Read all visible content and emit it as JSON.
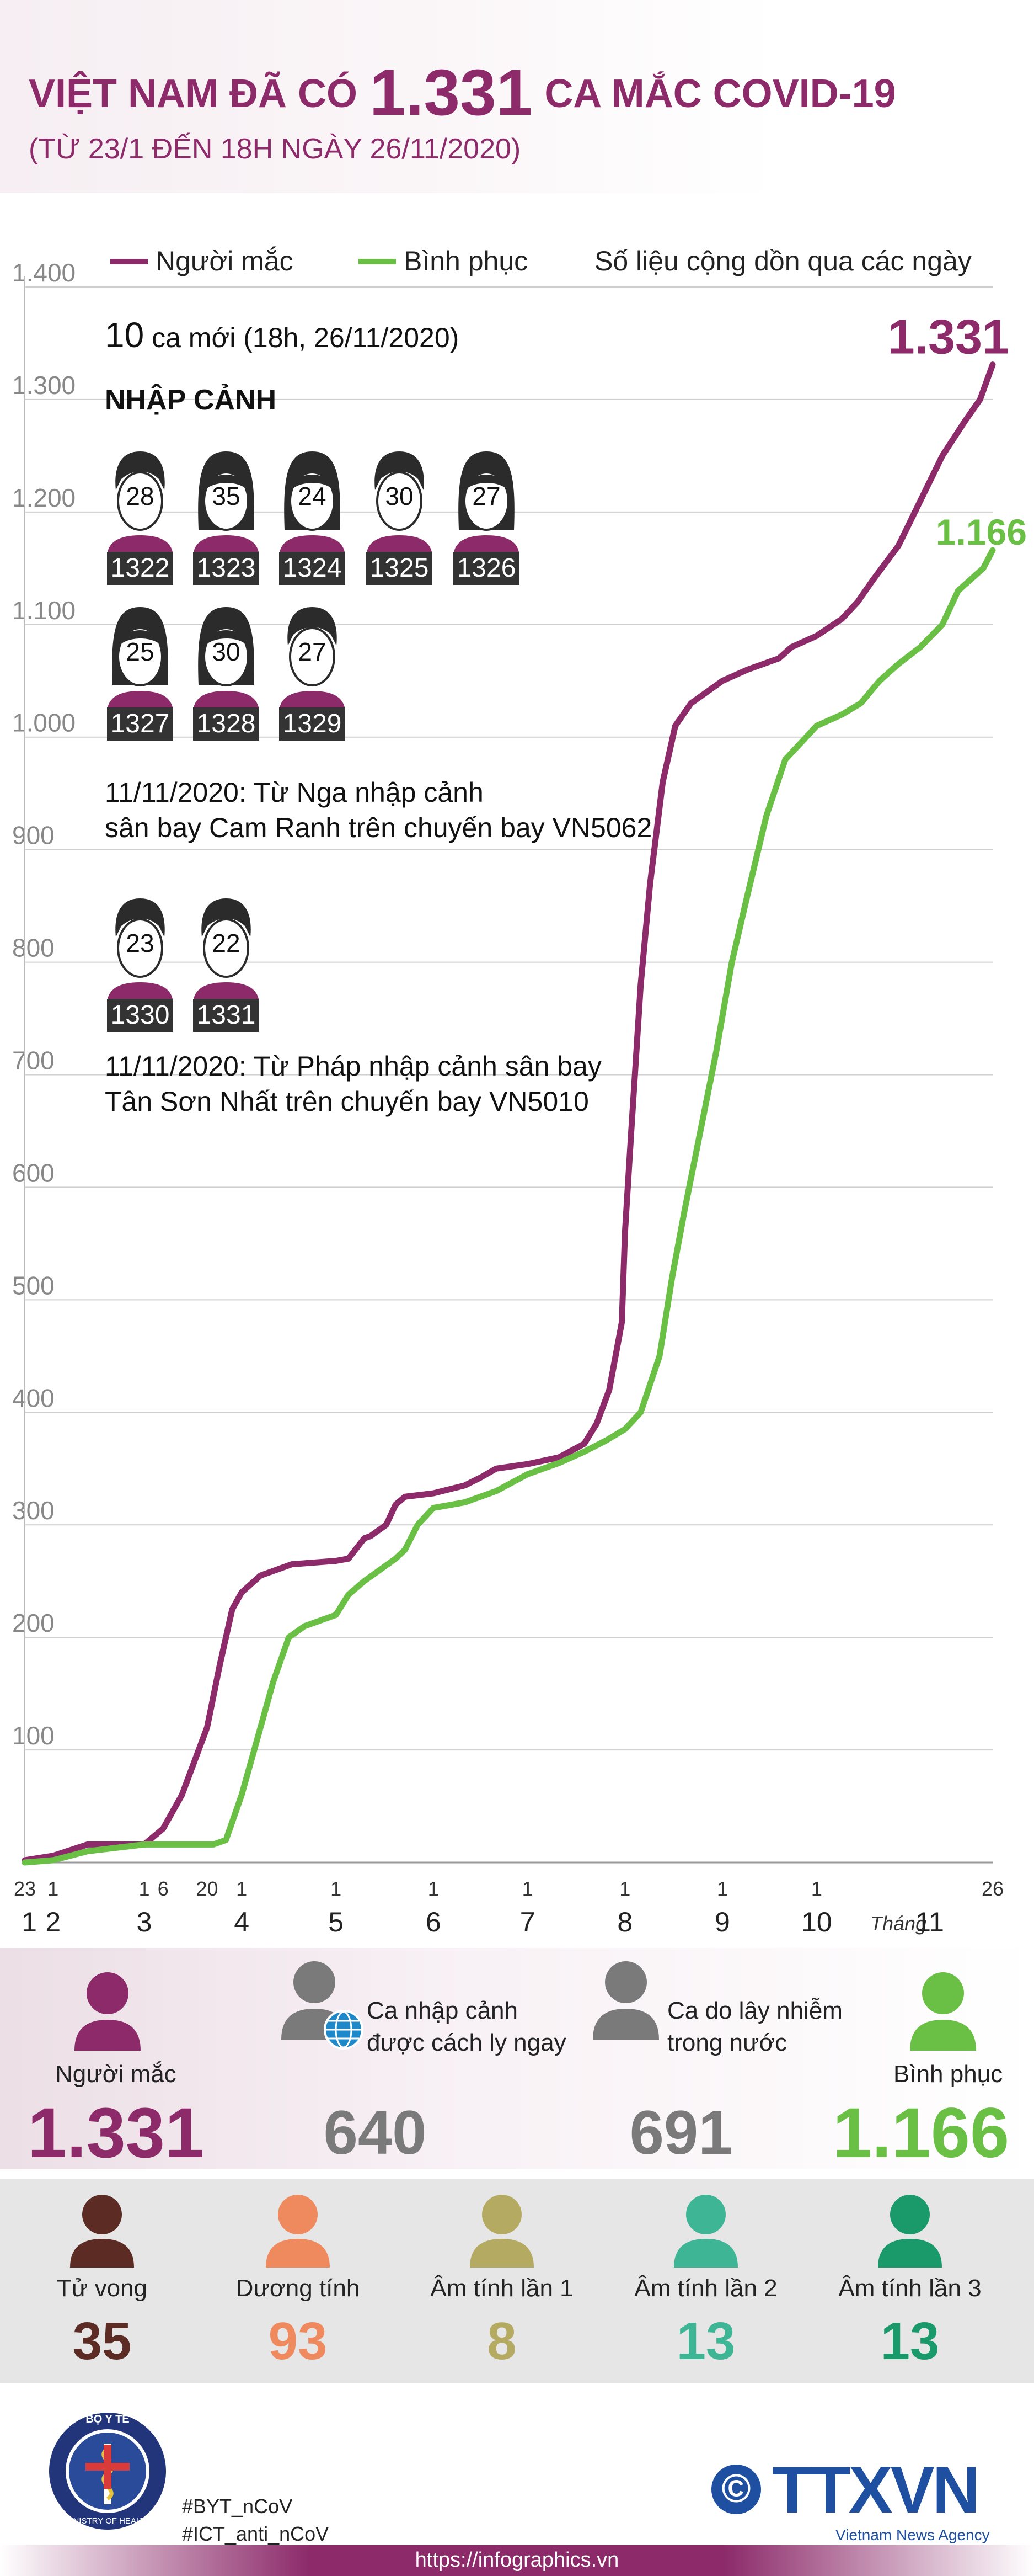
{
  "header": {
    "title_pre": "VIỆT NAM ĐÃ CÓ",
    "title_number": "1.331",
    "title_post": "CA MẮC COVID-19",
    "subtitle": "(TỪ 23/1 ĐẾN 18H NGÀY 26/11/2020)"
  },
  "legend": {
    "cases": "Người mắc",
    "recovered": "Bình phục",
    "note": "Số liệu cộng dồn qua các ngày"
  },
  "new_cases": {
    "count": "10",
    "text": "ca mới (18h, 26/11/2020)"
  },
  "entry_section": "NHẬP CẢNH",
  "group1": {
    "people": [
      {
        "age": "28",
        "id": "1322",
        "gender": "male"
      },
      {
        "age": "35",
        "id": "1323",
        "gender": "female"
      },
      {
        "age": "24",
        "id": "1324",
        "gender": "female"
      },
      {
        "age": "30",
        "id": "1325",
        "gender": "male"
      },
      {
        "age": "27",
        "id": "1326",
        "gender": "female"
      },
      {
        "age": "25",
        "id": "1327",
        "gender": "female"
      },
      {
        "age": "30",
        "id": "1328",
        "gender": "female"
      },
      {
        "age": "27",
        "id": "1329",
        "gender": "male"
      }
    ],
    "note_line1": "11/11/2020: Từ Nga nhập cảnh",
    "note_line2": "sân bay Cam Ranh trên chuyến bay VN5062"
  },
  "group2": {
    "people": [
      {
        "age": "23",
        "id": "1330",
        "gender": "male"
      },
      {
        "age": "22",
        "id": "1331",
        "gender": "male"
      }
    ],
    "note_line1": "11/11/2020: Từ Pháp nhập cảnh sân bay",
    "note_line2": "Tân Sơn Nhất trên chuyến bay VN5010"
  },
  "chart_data": {
    "type": "line",
    "title": "VIỆT NAM ĐÃ CÓ 1.331 CA MẮC COVID-19",
    "ylim": [
      0,
      1400
    ],
    "yticks": [
      {
        "v": 0,
        "label": ""
      },
      {
        "v": 100,
        "label": "100"
      },
      {
        "v": 200,
        "label": "200"
      },
      {
        "v": 300,
        "label": "300"
      },
      {
        "v": 400,
        "label": "400"
      },
      {
        "v": 500,
        "label": "500"
      },
      {
        "v": 600,
        "label": "600"
      },
      {
        "v": 700,
        "label": "700"
      },
      {
        "v": 800,
        "label": "800"
      },
      {
        "v": 900,
        "label": "900"
      },
      {
        "v": 1000,
        "label": "1.000"
      },
      {
        "v": 1100,
        "label": "1.100"
      },
      {
        "v": 1200,
        "label": "1.200"
      },
      {
        "v": 1300,
        "label": "1.300"
      },
      {
        "v": 1400,
        "label": "1.400"
      }
    ],
    "xlim": [
      0,
      308
    ],
    "day_ticks": [
      {
        "x": 0,
        "label": "23"
      },
      {
        "x": 9,
        "label": "1"
      },
      {
        "x": 38,
        "label": "1"
      },
      {
        "x": 44,
        "label": "6"
      },
      {
        "x": 58,
        "label": "20"
      },
      {
        "x": 69,
        "label": "1"
      },
      {
        "x": 99,
        "label": "1"
      },
      {
        "x": 130,
        "label": "1"
      },
      {
        "x": 160,
        "label": "1"
      },
      {
        "x": 191,
        "label": "1"
      },
      {
        "x": 222,
        "label": "1"
      },
      {
        "x": 252,
        "label": "1"
      },
      {
        "x": 278,
        "label": "Tháng"
      },
      {
        "x": 308,
        "label": "26"
      }
    ],
    "month_ticks": [
      {
        "x": 0,
        "label": "1"
      },
      {
        "x": 9,
        "label": "2"
      },
      {
        "x": 38,
        "label": "3"
      },
      {
        "x": 69,
        "label": "4"
      },
      {
        "x": 99,
        "label": "5"
      },
      {
        "x": 130,
        "label": "6"
      },
      {
        "x": 160,
        "label": "7"
      },
      {
        "x": 191,
        "label": "8"
      },
      {
        "x": 222,
        "label": "9"
      },
      {
        "x": 252,
        "label": "10"
      },
      {
        "x": 288,
        "label": "11"
      }
    ],
    "series": [
      {
        "name": "Người mắc",
        "color": "#8c2a6a",
        "end_label": "1.331",
        "points": [
          [
            0,
            2
          ],
          [
            9,
            6
          ],
          [
            20,
            16
          ],
          [
            30,
            16
          ],
          [
            38,
            16
          ],
          [
            44,
            30
          ],
          [
            50,
            60
          ],
          [
            58,
            120
          ],
          [
            62,
            175
          ],
          [
            66,
            225
          ],
          [
            69,
            240
          ],
          [
            75,
            255
          ],
          [
            85,
            265
          ],
          [
            99,
            268
          ],
          [
            103,
            270
          ],
          [
            108,
            288
          ],
          [
            110,
            290
          ],
          [
            115,
            300
          ],
          [
            118,
            318
          ],
          [
            121,
            325
          ],
          [
            130,
            328
          ],
          [
            140,
            335
          ],
          [
            145,
            342
          ],
          [
            150,
            350
          ],
          [
            160,
            354
          ],
          [
            170,
            360
          ],
          [
            178,
            372
          ],
          [
            182,
            390
          ],
          [
            186,
            420
          ],
          [
            190,
            480
          ],
          [
            191,
            560
          ],
          [
            193,
            650
          ],
          [
            196,
            780
          ],
          [
            199,
            870
          ],
          [
            203,
            960
          ],
          [
            207,
            1010
          ],
          [
            212,
            1030
          ],
          [
            222,
            1050
          ],
          [
            230,
            1060
          ],
          [
            240,
            1070
          ],
          [
            244,
            1080
          ],
          [
            252,
            1090
          ],
          [
            260,
            1105
          ],
          [
            265,
            1120
          ],
          [
            270,
            1140
          ],
          [
            278,
            1170
          ],
          [
            285,
            1210
          ],
          [
            292,
            1250
          ],
          [
            299,
            1280
          ],
          [
            304,
            1300
          ],
          [
            308,
            1331
          ]
        ]
      },
      {
        "name": "Bình phục",
        "color": "#6abf45",
        "end_label": "1.166",
        "points": [
          [
            0,
            0
          ],
          [
            9,
            2
          ],
          [
            20,
            10
          ],
          [
            38,
            16
          ],
          [
            60,
            16
          ],
          [
            64,
            20
          ],
          [
            69,
            60
          ],
          [
            74,
            110
          ],
          [
            79,
            160
          ],
          [
            84,
            200
          ],
          [
            89,
            210
          ],
          [
            99,
            220
          ],
          [
            103,
            238
          ],
          [
            108,
            250
          ],
          [
            114,
            262
          ],
          [
            118,
            270
          ],
          [
            121,
            278
          ],
          [
            125,
            300
          ],
          [
            130,
            315
          ],
          [
            140,
            320
          ],
          [
            150,
            330
          ],
          [
            160,
            345
          ],
          [
            170,
            355
          ],
          [
            178,
            365
          ],
          [
            185,
            375
          ],
          [
            191,
            385
          ],
          [
            196,
            400
          ],
          [
            202,
            450
          ],
          [
            206,
            520
          ],
          [
            210,
            580
          ],
          [
            215,
            650
          ],
          [
            220,
            720
          ],
          [
            225,
            800
          ],
          [
            230,
            860
          ],
          [
            236,
            930
          ],
          [
            242,
            980
          ],
          [
            252,
            1010
          ],
          [
            260,
            1020
          ],
          [
            266,
            1030
          ],
          [
            272,
            1050
          ],
          [
            278,
            1065
          ],
          [
            285,
            1080
          ],
          [
            292,
            1100
          ],
          [
            297,
            1130
          ],
          [
            301,
            1140
          ],
          [
            305,
            1150
          ],
          [
            308,
            1166
          ]
        ]
      }
    ]
  },
  "stats_main": [
    {
      "label": "Người mắc",
      "value": "1.331",
      "color": "#8c2a6a"
    },
    {
      "label": "Ca nhập cảnh\nđược cách ly ngay",
      "value": "640",
      "color": "#7a7a7a"
    },
    {
      "label": "Ca do lây nhiễm\ntrong nước",
      "value": "691",
      "color": "#7a7a7a"
    },
    {
      "label": "Bình phục",
      "value": "1.166",
      "color": "#6abf45"
    }
  ],
  "stats_status": [
    {
      "label": "Tử vong",
      "value": "35",
      "color": "#5b2b24"
    },
    {
      "label": "Dương tính",
      "value": "93",
      "color": "#ef8a5e"
    },
    {
      "label": "Âm tính lần 1",
      "value": "8",
      "color": "#b5aa61"
    },
    {
      "label": "Âm tính lần 2",
      "value": "13",
      "color": "#3eb594"
    },
    {
      "label": "Âm tính lần 3",
      "value": "13",
      "color": "#1a9a6a"
    }
  ],
  "footer": {
    "ministry_logo_text": "BỘ Y TẾ",
    "ministry_logo_sub": "MINISTRY OF HEALTH",
    "hashtag1": "#BYT_nCoV",
    "hashtag2": "#ICT_anti_nCoV",
    "copyright_symbol": "©",
    "agency_logo": "TTXVN",
    "agency_sub": "Vietnam News Agency",
    "url": "https://infographics.vn"
  }
}
